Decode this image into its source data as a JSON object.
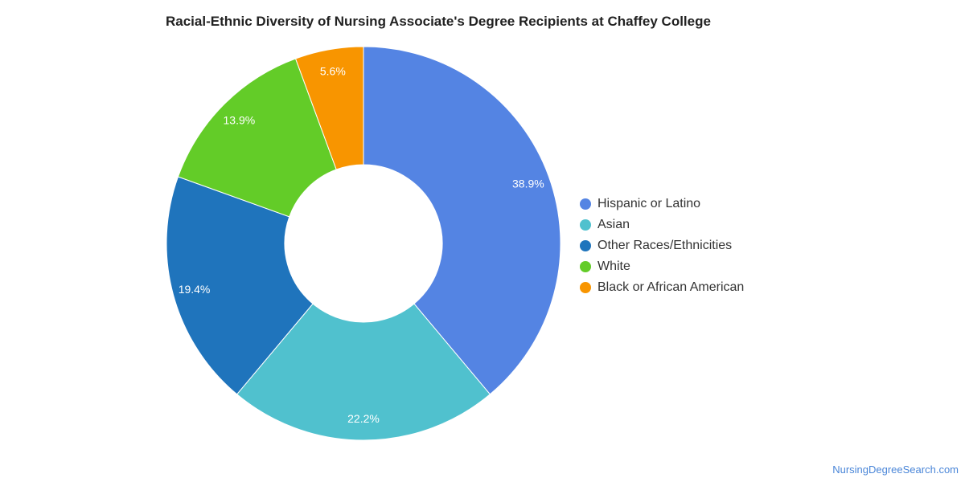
{
  "title": "Racial-Ethnic Diversity of Nursing Associate's Degree Recipients at Chaffey College",
  "watermark": "NursingDegreeSearch.com",
  "chart_data": {
    "type": "pie",
    "variant": "donut",
    "title": "Racial-Ethnic Diversity of Nursing Associate's Degree Recipients at Chaffey College",
    "legend_position": "right",
    "series": [
      {
        "name": "Hispanic or Latino",
        "value": 38.9,
        "label": "38.9%",
        "color": "#5484e3"
      },
      {
        "name": "Asian",
        "value": 22.2,
        "label": "22.2%",
        "color": "#50c1ce"
      },
      {
        "name": "Other Races/Ethnicities",
        "value": 19.4,
        "label": "19.4%",
        "color": "#1f74bc"
      },
      {
        "name": "White",
        "value": 13.9,
        "label": "13.9%",
        "color": "#63cc28"
      },
      {
        "name": "Black or African American",
        "value": 5.6,
        "label": "5.6%",
        "color": "#f89500"
      }
    ]
  }
}
